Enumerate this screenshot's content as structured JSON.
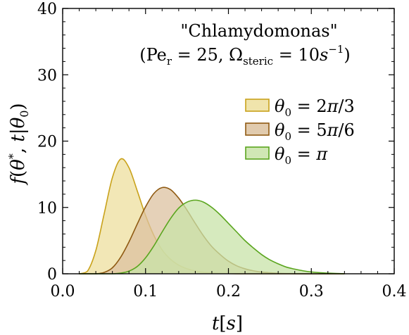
{
  "chart_data": {
    "type": "area",
    "title": "\"Chlamydomonas\"",
    "subtitle": "(Pe_r = 25, Ω_steric = 10s^-1)",
    "xlabel": "t[s]",
    "ylabel": "f(θ*, t|θ0)",
    "xlim": [
      0.0,
      0.4
    ],
    "ylim": [
      0,
      40
    ],
    "xticks": [
      "0.0",
      "0.1",
      "0.2",
      "0.3",
      "0.4"
    ],
    "yticks": [
      "0",
      "10",
      "20",
      "30",
      "40"
    ],
    "grid": false,
    "legend_position": "top-right",
    "x": [
      0.02,
      0.03,
      0.04,
      0.05,
      0.06,
      0.07,
      0.08,
      0.09,
      0.1,
      0.11,
      0.12,
      0.13,
      0.14,
      0.15,
      0.16,
      0.17,
      0.18,
      0.19,
      0.2,
      0.21,
      0.22,
      0.23,
      0.24,
      0.25,
      0.26,
      0.27,
      0.28,
      0.29,
      0.3,
      0.31,
      0.32,
      0.33,
      0.34
    ],
    "series": [
      {
        "name": "θ0 = 2π/3",
        "color": "#c9a21b",
        "fill": "#eddf9e",
        "values": [
          0,
          0.4,
          3.5,
          9.0,
          14.5,
          17.3,
          16.0,
          12.5,
          8.8,
          5.8,
          3.6,
          2.2,
          1.3,
          0.75,
          0.42,
          0.23,
          0.12,
          0.06,
          0.03,
          0.01,
          0,
          0,
          0,
          0,
          0,
          0,
          0,
          0,
          0,
          0,
          0,
          0,
          0
        ]
      },
      {
        "name": "θ0 = 5π/6",
        "color": "#8f5a12",
        "fill": "#dcc2a0",
        "values": [
          0,
          0,
          0,
          0.2,
          0.9,
          2.5,
          4.8,
          7.5,
          10.1,
          12.1,
          13.0,
          12.7,
          11.4,
          9.6,
          7.6,
          5.7,
          4.1,
          2.9,
          1.9,
          1.2,
          0.75,
          0.45,
          0.26,
          0.15,
          0.08,
          0.04,
          0.02,
          0,
          0,
          0,
          0,
          0,
          0
        ]
      },
      {
        "name": "θ0 = π",
        "color": "#5aa51e",
        "fill": "#c8e3a8",
        "values": [
          0,
          0,
          0,
          0,
          0,
          0.1,
          0.4,
          1.1,
          2.4,
          4.2,
          6.3,
          8.3,
          9.9,
          10.8,
          11.1,
          10.8,
          10.0,
          8.9,
          7.6,
          6.3,
          5.0,
          3.9,
          2.9,
          2.1,
          1.5,
          1.0,
          0.7,
          0.45,
          0.28,
          0.17,
          0.1,
          0.05,
          0
        ]
      }
    ]
  }
}
